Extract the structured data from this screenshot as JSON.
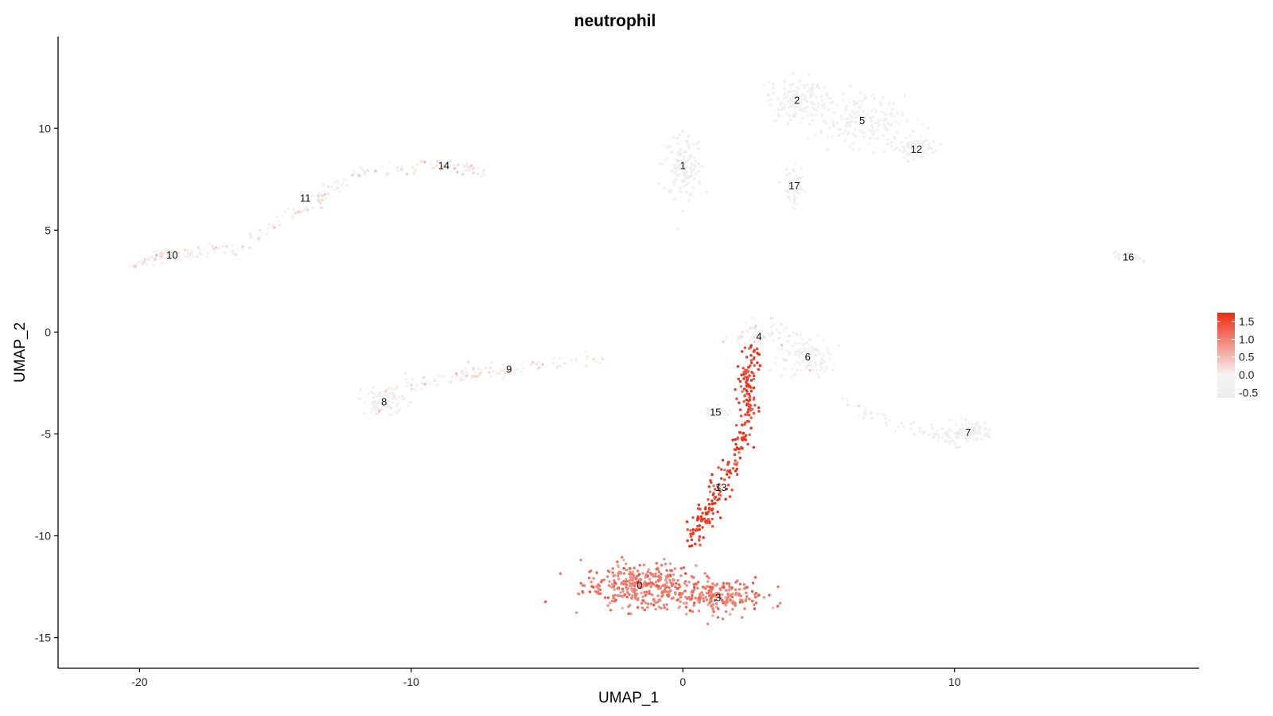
{
  "chart_data": {
    "type": "scatter",
    "title": "neutrophil",
    "xlabel": "UMAP_1",
    "ylabel": "UMAP_2",
    "xlim": [
      -23,
      19
    ],
    "ylim": [
      -16.5,
      14.5
    ],
    "xticks": [
      -20,
      -10,
      0,
      10
    ],
    "yticks": [
      -15,
      -10,
      -5,
      0,
      5,
      10
    ],
    "xtick_labels": [
      "-20",
      "-10",
      "0",
      "10"
    ],
    "ytick_labels": [
      "-15",
      "-10",
      "-5",
      "0",
      "5",
      "10"
    ],
    "grid": false,
    "color_scale": {
      "low_color": "#ececec",
      "mid_color": "#f4f4f4",
      "high_color": "#ee2a12",
      "min": -0.65,
      "max": 1.75,
      "ticks": [
        1.5,
        1.0,
        0.5,
        0.0,
        -0.5
      ],
      "tick_labels": [
        "1.5",
        "1.0",
        "0.5",
        "0.0",
        "-0.5"
      ],
      "legend_position": "right"
    },
    "clusters": [
      {
        "label": "0",
        "x": -1.6,
        "y": -12.4,
        "expr": 1.05
      },
      {
        "label": "1",
        "x": 0.0,
        "y": 8.2,
        "expr": -0.35
      },
      {
        "label": "2",
        "x": 4.2,
        "y": 11.4,
        "expr": -0.3
      },
      {
        "label": "3",
        "x": 1.3,
        "y": -13.0,
        "expr": 1.05
      },
      {
        "label": "4",
        "x": 2.8,
        "y": -0.2,
        "expr": 0.0
      },
      {
        "label": "5",
        "x": 6.6,
        "y": 10.4,
        "expr": -0.3
      },
      {
        "label": "6",
        "x": 4.6,
        "y": -1.2,
        "expr": -0.15
      },
      {
        "label": "7",
        "x": 10.5,
        "y": -4.9,
        "expr": -0.3
      },
      {
        "label": "8",
        "x": -11.0,
        "y": -3.4,
        "expr": -0.3
      },
      {
        "label": "9",
        "x": -6.4,
        "y": -1.8,
        "expr": 0.1
      },
      {
        "label": "10",
        "x": -18.8,
        "y": 3.8,
        "expr": -0.3
      },
      {
        "label": "11",
        "x": -13.9,
        "y": 6.6,
        "expr": 0.15
      },
      {
        "label": "12",
        "x": 8.6,
        "y": 9.0,
        "expr": -0.35
      },
      {
        "label": "13",
        "x": 1.4,
        "y": -7.6,
        "expr": 1.55
      },
      {
        "label": "14",
        "x": -8.8,
        "y": 8.2,
        "expr": 0.15
      },
      {
        "label": "15",
        "x": 1.2,
        "y": -3.9,
        "expr": -0.3
      },
      {
        "label": "16",
        "x": 16.4,
        "y": 3.7,
        "expr": -0.3
      },
      {
        "label": "17",
        "x": 4.1,
        "y": 7.2,
        "expr": -0.15
      }
    ]
  }
}
